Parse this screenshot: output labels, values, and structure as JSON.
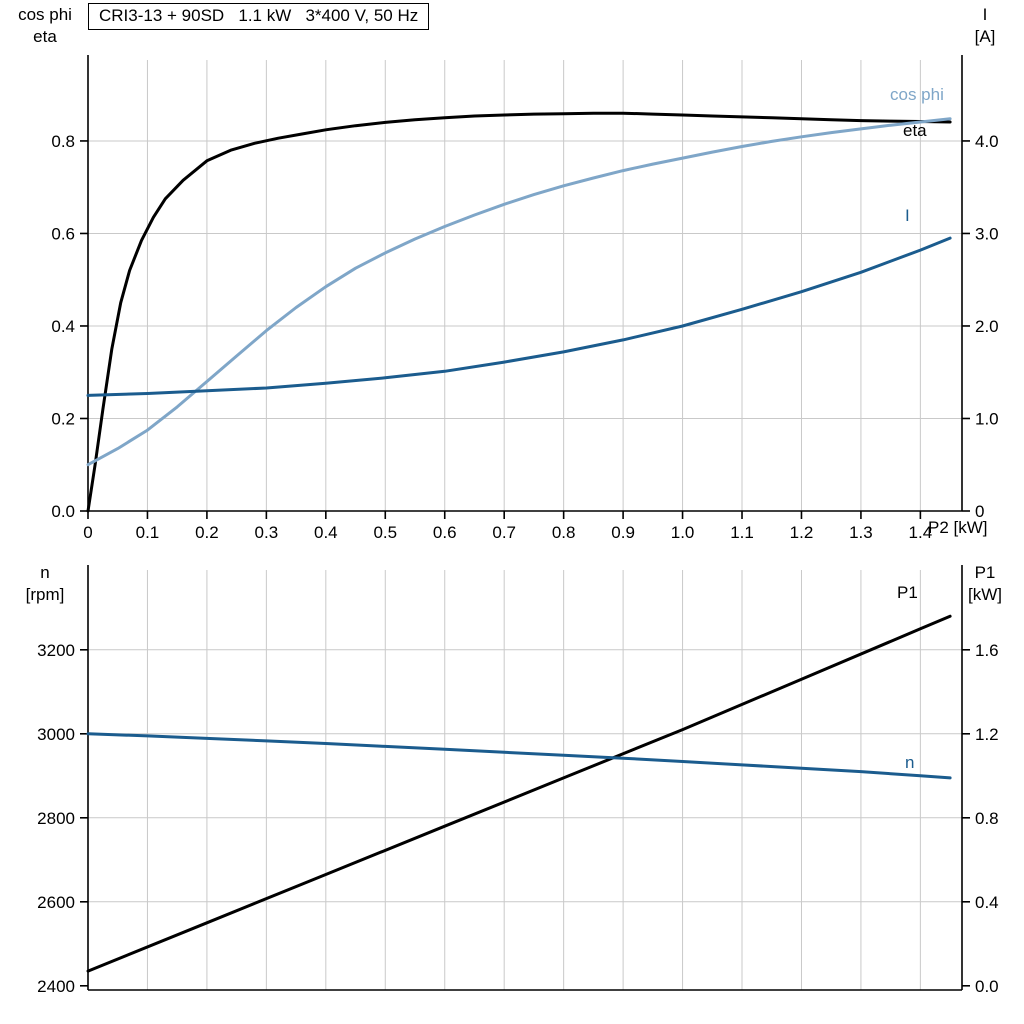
{
  "colors": {
    "black": "#000000",
    "light_blue": "#7fa6c8",
    "dark_blue": "#1b5c8e",
    "grid": "#c9c9c9",
    "axis": "#000000"
  },
  "chart_data": [
    {
      "type": "line",
      "title": "CRI3-13 + 90SD   1.1 kW   3*400 V, 50 Hz",
      "x_axis": {
        "label": "P2 [kW]",
        "min": 0,
        "max": 1.47,
        "tick_values": [
          0,
          0.1,
          0.2,
          0.3,
          0.4,
          0.5,
          0.6,
          0.7,
          0.8,
          0.9,
          1.0,
          1.1,
          1.2,
          1.3,
          1.4
        ],
        "tick_labels": [
          "0",
          "0.1",
          "0.2",
          "0.3",
          "0.4",
          "0.5",
          "0.6",
          "0.7",
          "0.8",
          "0.9",
          "1.0",
          "1.1",
          "1.2",
          "1.3",
          "1.4"
        ]
      },
      "y_left": {
        "label_lines": [
          "cos phi",
          "eta"
        ],
        "min": 0,
        "max": 0.975,
        "tick_values": [
          0,
          0.2,
          0.4,
          0.6,
          0.8
        ],
        "tick_labels": [
          "0.0",
          "0.2",
          "0.4",
          "0.6",
          "0.8"
        ]
      },
      "y_right": {
        "label_lines": [
          "I",
          "[A]"
        ],
        "min": 0,
        "max": 4.875,
        "tick_values": [
          0,
          1,
          2,
          3,
          4
        ],
        "tick_labels": [
          "0",
          "1.0",
          "2.0",
          "3.0",
          "4.0"
        ]
      },
      "series": [
        {
          "name": "eta",
          "axis": "left",
          "color_key": "black",
          "points": [
            [
              0,
              0
            ],
            [
              0.012,
              0.1
            ],
            [
              0.025,
              0.22
            ],
            [
              0.04,
              0.35
            ],
            [
              0.055,
              0.45
            ],
            [
              0.07,
              0.52
            ],
            [
              0.09,
              0.585
            ],
            [
              0.11,
              0.635
            ],
            [
              0.13,
              0.675
            ],
            [
              0.16,
              0.715
            ],
            [
              0.2,
              0.757
            ],
            [
              0.24,
              0.78
            ],
            [
              0.28,
              0.795
            ],
            [
              0.32,
              0.806
            ],
            [
              0.36,
              0.815
            ],
            [
              0.4,
              0.824
            ],
            [
              0.45,
              0.833
            ],
            [
              0.5,
              0.84
            ],
            [
              0.55,
              0.846
            ],
            [
              0.6,
              0.85
            ],
            [
              0.65,
              0.854
            ],
            [
              0.7,
              0.856
            ],
            [
              0.75,
              0.858
            ],
            [
              0.8,
              0.859
            ],
            [
              0.85,
              0.86
            ],
            [
              0.9,
              0.86
            ],
            [
              0.95,
              0.858
            ],
            [
              1.0,
              0.856
            ],
            [
              1.05,
              0.854
            ],
            [
              1.1,
              0.852
            ],
            [
              1.15,
              0.85
            ],
            [
              1.2,
              0.848
            ],
            [
              1.25,
              0.846
            ],
            [
              1.3,
              0.844
            ],
            [
              1.35,
              0.843
            ],
            [
              1.4,
              0.842
            ],
            [
              1.45,
              0.841
            ]
          ]
        },
        {
          "name": "cos phi",
          "axis": "left",
          "color_key": "light_blue",
          "points": [
            [
              0,
              0.1
            ],
            [
              0.05,
              0.135
            ],
            [
              0.1,
              0.175
            ],
            [
              0.15,
              0.225
            ],
            [
              0.2,
              0.28
            ],
            [
              0.25,
              0.335
            ],
            [
              0.3,
              0.39
            ],
            [
              0.35,
              0.44
            ],
            [
              0.4,
              0.485
            ],
            [
              0.45,
              0.525
            ],
            [
              0.5,
              0.558
            ],
            [
              0.55,
              0.588
            ],
            [
              0.6,
              0.615
            ],
            [
              0.65,
              0.64
            ],
            [
              0.7,
              0.663
            ],
            [
              0.75,
              0.684
            ],
            [
              0.8,
              0.703
            ],
            [
              0.85,
              0.72
            ],
            [
              0.9,
              0.736
            ],
            [
              0.95,
              0.75
            ],
            [
              1.0,
              0.763
            ],
            [
              1.05,
              0.776
            ],
            [
              1.1,
              0.788
            ],
            [
              1.15,
              0.799
            ],
            [
              1.2,
              0.809
            ],
            [
              1.25,
              0.818
            ],
            [
              1.3,
              0.826
            ],
            [
              1.35,
              0.834
            ],
            [
              1.4,
              0.841
            ],
            [
              1.45,
              0.848
            ]
          ]
        },
        {
          "name": "I",
          "axis": "right",
          "color_key": "dark_blue",
          "points": [
            [
              0,
              1.25
            ],
            [
              0.1,
              1.27
            ],
            [
              0.2,
              1.3
            ],
            [
              0.3,
              1.33
            ],
            [
              0.4,
              1.38
            ],
            [
              0.5,
              1.44
            ],
            [
              0.6,
              1.51
            ],
            [
              0.7,
              1.61
            ],
            [
              0.8,
              1.72
            ],
            [
              0.9,
              1.85
            ],
            [
              1.0,
              2.0
            ],
            [
              1.1,
              2.18
            ],
            [
              1.2,
              2.37
            ],
            [
              1.3,
              2.58
            ],
            [
              1.4,
              2.82
            ],
            [
              1.45,
              2.95
            ]
          ]
        }
      ]
    },
    {
      "type": "line",
      "title": "",
      "x_axis": {
        "label": "",
        "min": 0,
        "max": 1.47,
        "tick_values": [
          0,
          0.1,
          0.2,
          0.3,
          0.4,
          0.5,
          0.6,
          0.7,
          0.8,
          0.9,
          1.0,
          1.1,
          1.2,
          1.3,
          1.4
        ],
        "tick_labels": []
      },
      "y_left": {
        "label_lines": [
          "n",
          "[rpm]"
        ],
        "min": 2390,
        "max": 3390,
        "tick_values": [
          2400,
          2600,
          2800,
          3000,
          3200
        ],
        "tick_labels": [
          "2400",
          "2600",
          "2800",
          "3000",
          "3200"
        ]
      },
      "y_right": {
        "label_lines": [
          "P1",
          "[kW]"
        ],
        "min": -0.02,
        "max": 1.98,
        "tick_values": [
          0,
          0.4,
          0.8,
          1.2,
          1.6
        ],
        "tick_labels": [
          "0.0",
          "0.4",
          "0.8",
          "1.2",
          "1.6"
        ]
      },
      "series": [
        {
          "name": "P1",
          "axis": "right",
          "color_key": "black",
          "points": [
            [
              0,
              0.07
            ],
            [
              0.2,
              0.3
            ],
            [
              0.4,
              0.53
            ],
            [
              0.6,
              0.76
            ],
            [
              0.8,
              0.99
            ],
            [
              1.0,
              1.22
            ],
            [
              1.2,
              1.46
            ],
            [
              1.4,
              1.7
            ],
            [
              1.45,
              1.76
            ]
          ]
        },
        {
          "name": "n",
          "axis": "left",
          "color_key": "dark_blue",
          "points": [
            [
              0,
              3000
            ],
            [
              0.1,
              2995
            ],
            [
              0.2,
              2989
            ],
            [
              0.3,
              2983
            ],
            [
              0.4,
              2977
            ],
            [
              0.5,
              2970
            ],
            [
              0.6,
              2963
            ],
            [
              0.7,
              2956
            ],
            [
              0.8,
              2949
            ],
            [
              0.9,
              2942
            ],
            [
              1.0,
              2934
            ],
            [
              1.1,
              2926
            ],
            [
              1.2,
              2918
            ],
            [
              1.3,
              2910
            ],
            [
              1.4,
              2900
            ],
            [
              1.45,
              2895
            ]
          ]
        }
      ]
    }
  ]
}
